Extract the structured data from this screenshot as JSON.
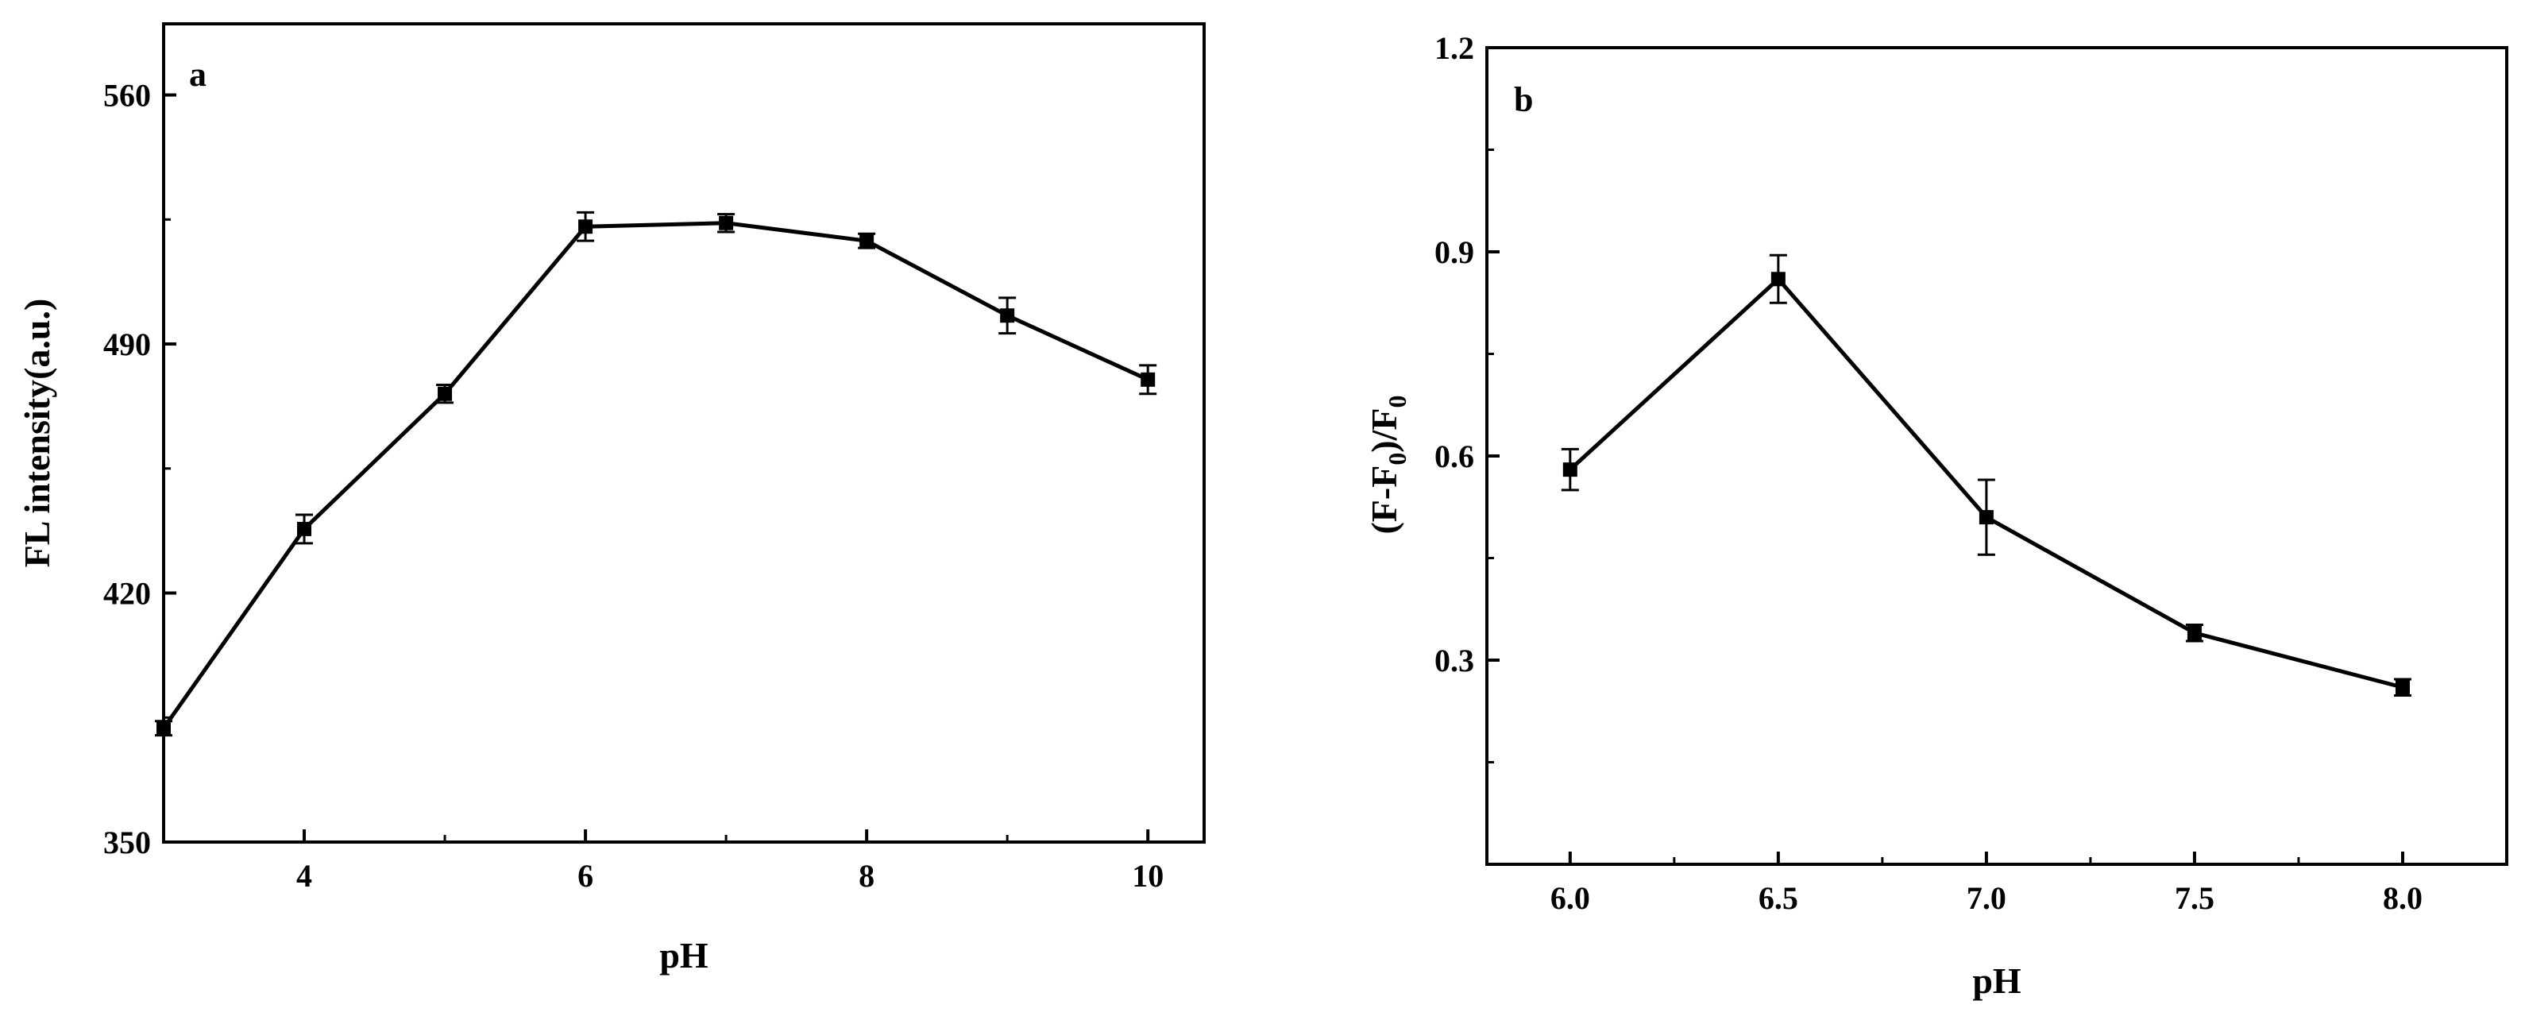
{
  "chart_data": [
    {
      "type": "line",
      "panel_label": "a",
      "xlabel": "pH",
      "ylabel": "FL intensity(a.u.)",
      "xlim": [
        3,
        10.4
      ],
      "ylim": [
        350,
        580
      ],
      "xticks": [
        "4",
        "6",
        "8",
        "10"
      ],
      "xtick_values": [
        4,
        6,
        8,
        10
      ],
      "yticks": [
        "350",
        "420",
        "490",
        "560"
      ],
      "ytick_values": [
        350,
        420,
        490,
        560
      ],
      "x": [
        3,
        4,
        5,
        6,
        7,
        8,
        9,
        10
      ],
      "series": [
        {
          "values": [
            382,
            438,
            476,
            523,
            524,
            519,
            498,
            480
          ],
          "errors": [
            2,
            4,
            2.5,
            4,
            2.5,
            2,
            5,
            4
          ]
        }
      ],
      "marker": "square",
      "grid": false,
      "color": "#000000"
    },
    {
      "type": "line",
      "panel_label": "b",
      "xlabel": "pH",
      "ylabel": "(F-F0)/F0",
      "ylabel_parts": [
        "(F-F",
        "0",
        ")/F",
        "0"
      ],
      "xlim": [
        5.8,
        8.25
      ],
      "ylim": [
        0.0,
        1.2
      ],
      "xticks": [
        "6.0",
        "6.5",
        "7.0",
        "7.5",
        "8.0"
      ],
      "xtick_values": [
        6.0,
        6.5,
        7.0,
        7.5,
        8.0
      ],
      "yticks": [
        "0.3",
        "0.6",
        "0.9",
        "1.2"
      ],
      "ytick_values": [
        0.3,
        0.6,
        0.9,
        1.2
      ],
      "x": [
        6.0,
        6.5,
        7.0,
        7.5,
        8.0
      ],
      "series": [
        {
          "values": [
            0.58,
            0.86,
            0.51,
            0.34,
            0.26
          ],
          "errors": [
            0.03,
            0.035,
            0.055,
            0.012,
            0.012
          ]
        }
      ],
      "marker": "square",
      "grid": false,
      "color": "#000000"
    }
  ]
}
